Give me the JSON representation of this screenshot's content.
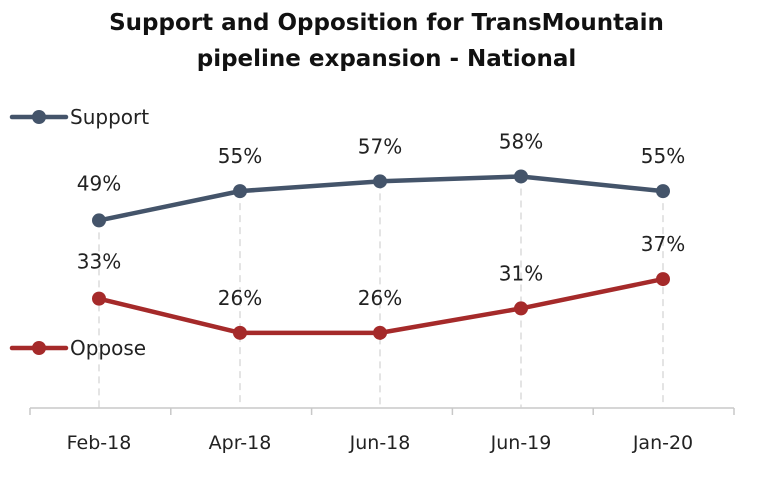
{
  "chart_data": {
    "type": "line",
    "title_line1": "Support and Opposition for TransMountain",
    "title_line2": "pipeline expansion - National",
    "categories": [
      "Feb-18",
      "Apr-18",
      "Jun-18",
      "Jun-19",
      "Jan-20"
    ],
    "ylim": [
      0,
      70
    ],
    "grid": false,
    "legend_placement": "inline-left",
    "series": [
      {
        "name": "Support",
        "values": [
          49,
          55,
          57,
          58,
          55
        ],
        "labels": [
          "49%",
          "55%",
          "57%",
          "58%",
          "55%"
        ],
        "color": "#44546a"
      },
      {
        "name": "Oppose",
        "values": [
          33,
          26,
          26,
          31,
          37
        ],
        "labels": [
          "33%",
          "26%",
          "26%",
          "31%",
          "37%"
        ],
        "color": "#a52a2a"
      }
    ]
  }
}
